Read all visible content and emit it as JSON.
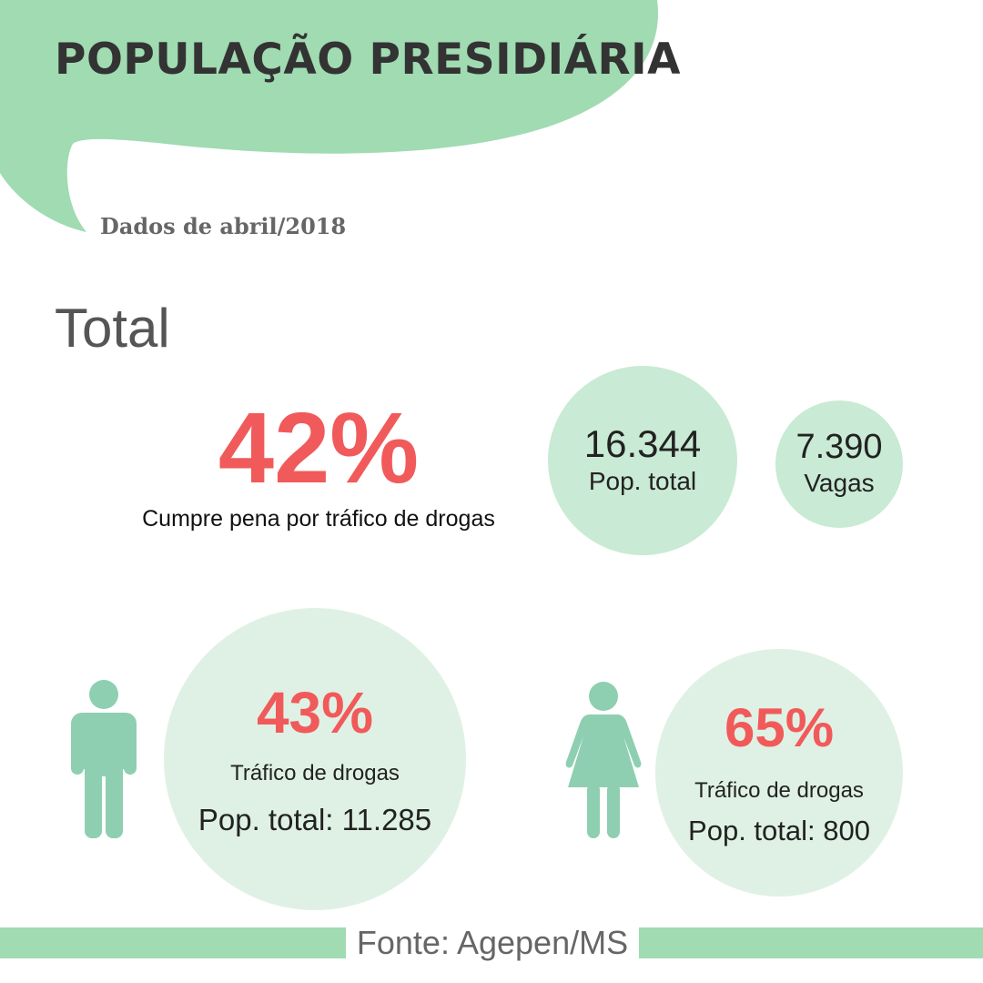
{
  "header": {
    "title": "POPULAÇÃO PRESIDIÁRIA",
    "subtitle": "Dados de abril/2018"
  },
  "total": {
    "section_label": "Total",
    "drug_percent": "42%",
    "drug_caption": "Cumpre pena por tráfico de drogas",
    "population_value": "16.344",
    "population_label": "Pop. total",
    "vacancies_value": "7.390",
    "vacancies_label": "Vagas"
  },
  "men": {
    "icon": "man-icon",
    "drug_percent": "43%",
    "drug_label": "Tráfico de drogas",
    "population_text": "Pop. total: 11.285"
  },
  "women": {
    "icon": "woman-icon",
    "drug_percent": "65%",
    "drug_label": "Tráfico de drogas",
    "population_text": "Pop. total: 800"
  },
  "footer": {
    "source": "Fonte: Agepen/MS"
  },
  "colors": {
    "accent_green": "#a0dbb2",
    "circle_green": "#c9ead4",
    "circle_light": "#dff1e4",
    "figure_green": "#8fcfb1",
    "highlight_red": "#f15a5a",
    "title_text": "#333333"
  }
}
